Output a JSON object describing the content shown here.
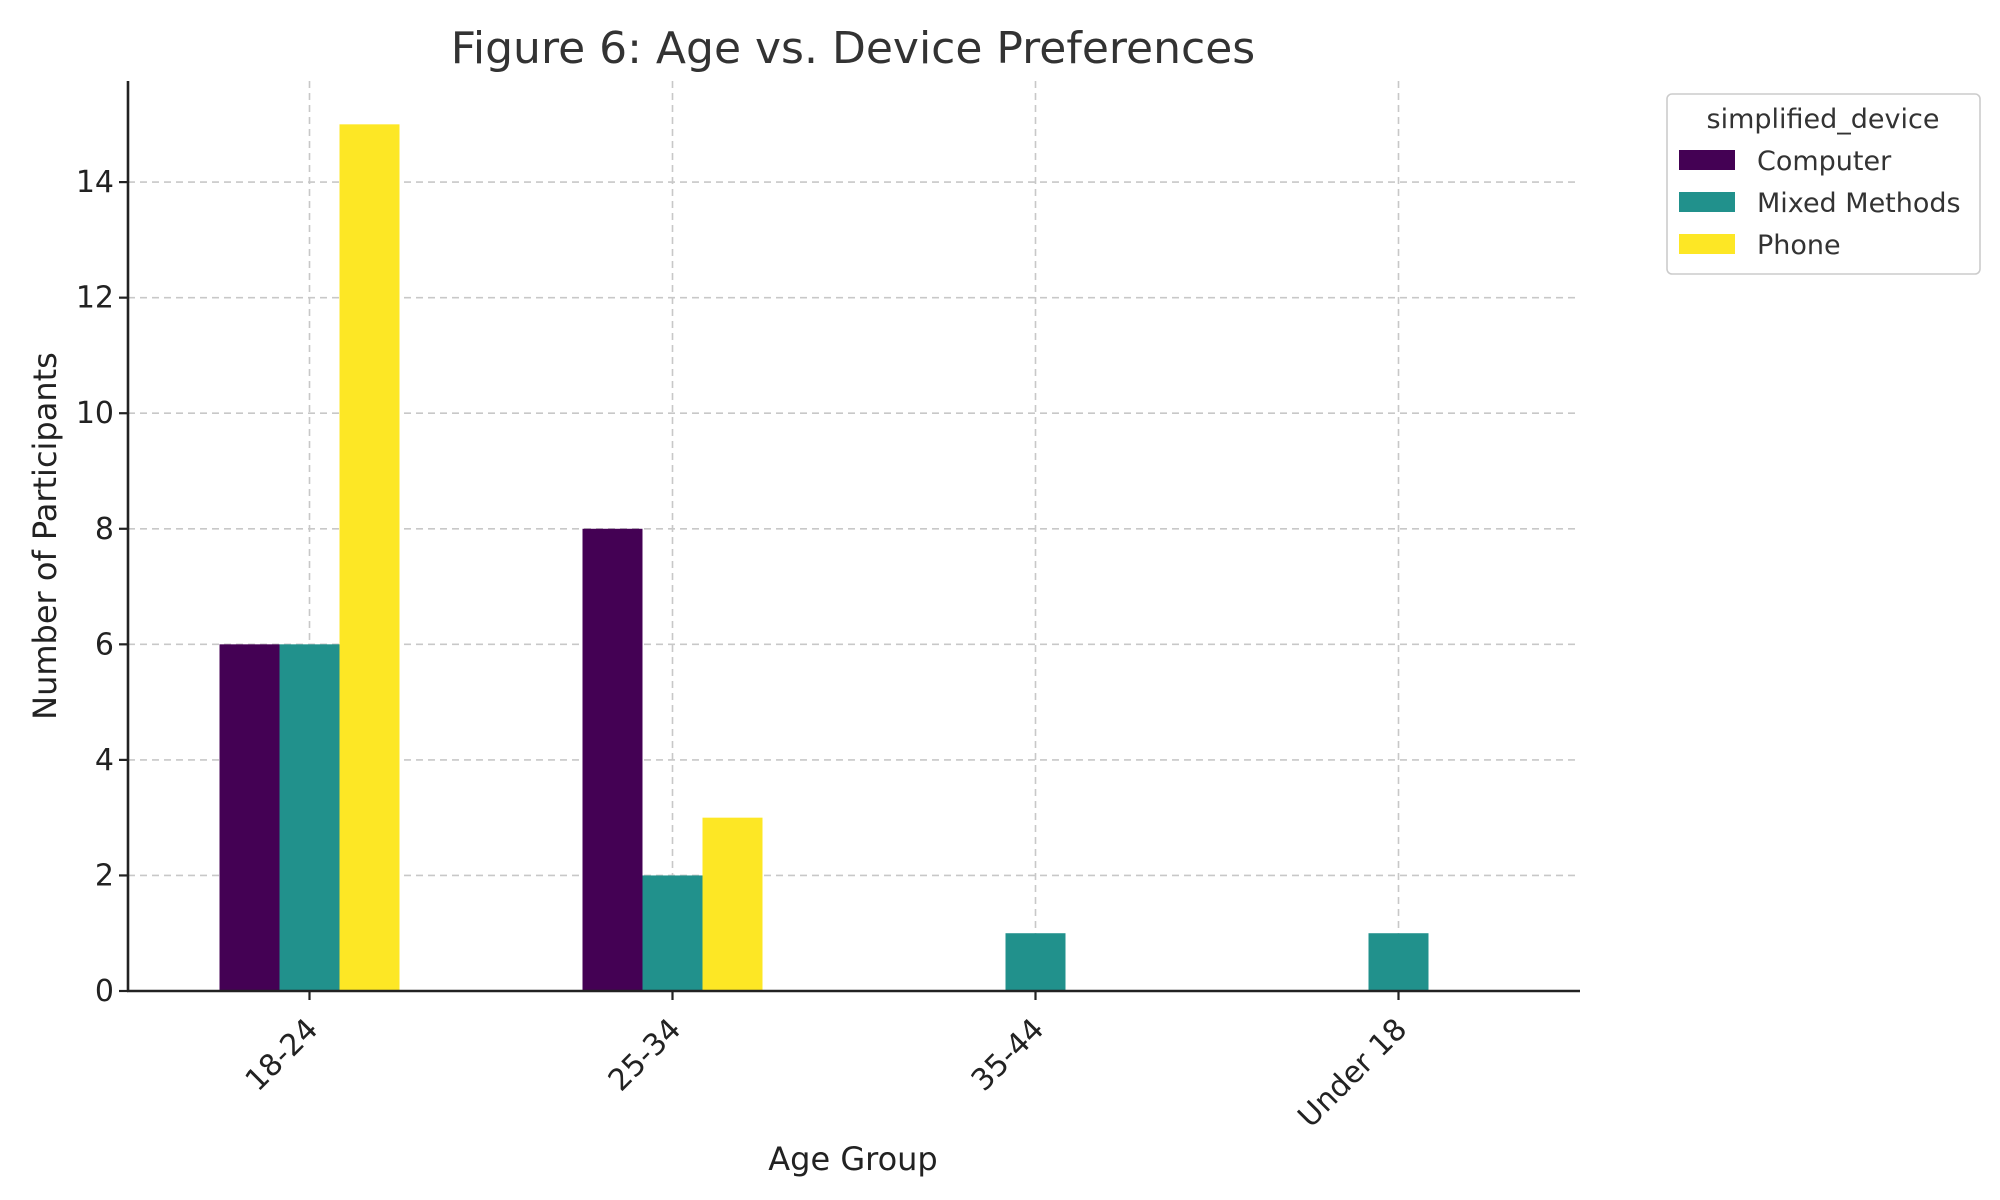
{
  "chart_data": {
    "type": "bar",
    "title": "Figure 6: Age vs. Device Preferences",
    "xlabel": "Age Group",
    "ylabel": "Number of Participants",
    "categories": [
      "18-24",
      "25-34",
      "35-44",
      "Under 18"
    ],
    "series": [
      {
        "name": "Computer",
        "color": "#440154",
        "values": [
          6,
          8,
          0,
          0
        ]
      },
      {
        "name": "Mixed Methods",
        "color": "#21918c",
        "values": [
          6,
          2,
          1,
          1
        ]
      },
      {
        "name": "Phone",
        "color": "#fde725",
        "values": [
          15,
          3,
          0,
          0
        ]
      }
    ],
    "ylim": [
      0,
      15.75
    ],
    "yticks": [
      0,
      2,
      4,
      6,
      8,
      10,
      12,
      14
    ],
    "grid": true,
    "legend": {
      "title": "simplified_device",
      "placement": "outside-top-right"
    }
  }
}
